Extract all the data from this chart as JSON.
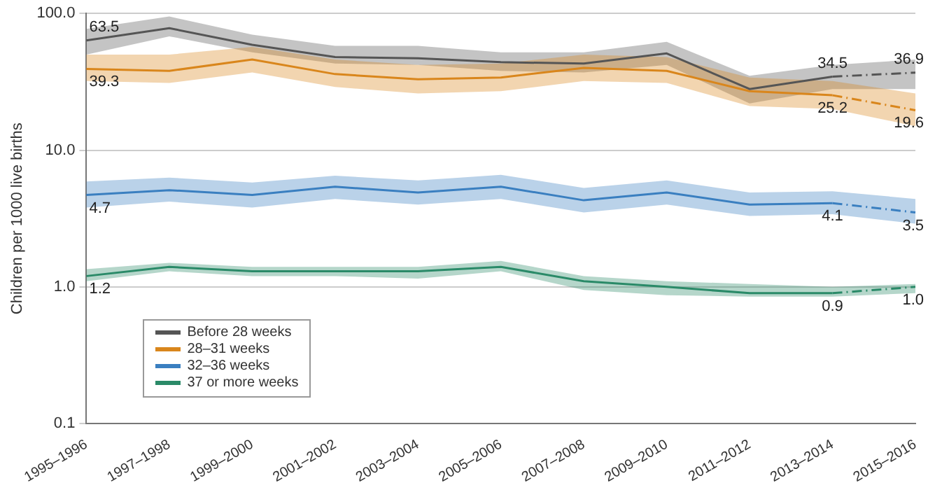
{
  "chart_data": {
    "type": "line",
    "ylabel": "Children per 1000 live births",
    "categories": [
      "1995–1996",
      "1997–1998",
      "1999–2000",
      "2001–2002",
      "2003–2004",
      "2005–2006",
      "2007–2008",
      "2009–2010",
      "2011–2012",
      "2013–2014",
      "2015–2016"
    ],
    "log": "y",
    "ylim": [
      0.1,
      100
    ],
    "yticks": [
      {
        "value": 0.1,
        "label": "0.1"
      },
      {
        "value": 1,
        "label": "1.0"
      },
      {
        "value": 10,
        "label": "10.0"
      },
      {
        "value": 100,
        "label": "100.0"
      }
    ],
    "grid": "y",
    "legend": "bottom left",
    "marker": "none",
    "line_style": "solid",
    "series": [
      {
        "name": "Before 28 weeks",
        "color": "#555555",
        "values": [
          63.5,
          78,
          59,
          48,
          47,
          44,
          43,
          51,
          28,
          34.5,
          null
        ],
        "lower": [
          50,
          68,
          52,
          43,
          42,
          38,
          37,
          42,
          22,
          28,
          28
        ],
        "upper": [
          77,
          95,
          70,
          58,
          58,
          52,
          52,
          62,
          35,
          42,
          46
        ],
        "value_labels": [
          "63.5",
          null,
          null,
          null,
          null,
          null,
          null,
          null,
          null,
          "34.5",
          null
        ]
      },
      {
        "name": "28–31 weeks",
        "color": "#d9861c",
        "values": [
          39.3,
          38,
          46,
          36,
          33,
          34,
          40,
          38,
          27,
          25.2,
          null
        ],
        "lower": [
          32,
          31,
          37,
          29,
          26,
          27,
          32,
          31,
          21,
          20,
          15
        ],
        "upper": [
          50,
          50,
          57,
          46,
          42,
          43,
          50,
          48,
          34,
          32,
          26
        ],
        "value_labels": [
          "39.3",
          null,
          null,
          null,
          null,
          null,
          null,
          null,
          null,
          "25.2",
          null
        ]
      },
      {
        "name": "32–36 weeks",
        "color": "#3a7fc0",
        "values": [
          4.7,
          5.1,
          4.7,
          5.4,
          4.9,
          5.4,
          4.3,
          4.9,
          4.0,
          4.1,
          null
        ],
        "lower": [
          3.8,
          4.2,
          3.8,
          4.4,
          4.0,
          4.4,
          3.5,
          4.0,
          3.3,
          3.4,
          2.9
        ],
        "upper": [
          5.9,
          6.3,
          5.8,
          6.5,
          6.0,
          6.6,
          5.3,
          6.0,
          4.9,
          5.0,
          4.4
        ],
        "value_labels": [
          "4.7",
          null,
          null,
          null,
          null,
          null,
          null,
          null,
          null,
          "4.1",
          null
        ]
      },
      {
        "name": "37 or more weeks",
        "color": "#2a8a68",
        "values": [
          1.2,
          1.4,
          1.3,
          1.3,
          1.3,
          1.4,
          1.1,
          1.0,
          0.9,
          0.9,
          null
        ],
        "lower": [
          1.1,
          1.3,
          1.2,
          1.2,
          1.15,
          1.3,
          0.95,
          0.87,
          0.85,
          0.85,
          0.9
        ],
        "upper": [
          1.35,
          1.5,
          1.4,
          1.4,
          1.4,
          1.55,
          1.2,
          1.1,
          1.05,
          1.0,
          1.05
        ],
        "value_labels": [
          "1.2",
          null,
          null,
          null,
          null,
          null,
          null,
          null,
          null,
          "0.9",
          null
        ]
      },
      {
        "color": "#555555",
        "line_style": "dashed",
        "values": [
          null,
          null,
          null,
          null,
          null,
          null,
          null,
          null,
          null,
          34.5,
          36.9
        ],
        "value_labels": [
          null,
          null,
          null,
          null,
          null,
          null,
          null,
          null,
          null,
          null,
          "36.9"
        ]
      },
      {
        "color": "#d9861c",
        "line_style": "dashed",
        "values": [
          null,
          null,
          null,
          null,
          null,
          null,
          null,
          null,
          null,
          25.2,
          19.6
        ],
        "value_labels": [
          null,
          null,
          null,
          null,
          null,
          null,
          null,
          null,
          null,
          null,
          "19.6"
        ]
      },
      {
        "color": "#3a7fc0",
        "line_style": "dashed",
        "values": [
          null,
          null,
          null,
          null,
          null,
          null,
          null,
          null,
          null,
          4.1,
          3.5
        ],
        "value_labels": [
          null,
          null,
          null,
          null,
          null,
          null,
          null,
          null,
          null,
          null,
          "3.5"
        ]
      },
      {
        "color": "#2a8a68",
        "line_style": "dashed",
        "values": [
          null,
          null,
          null,
          null,
          null,
          null,
          null,
          null,
          null,
          0.9,
          1.0
        ],
        "value_labels": [
          null,
          null,
          null,
          null,
          null,
          null,
          null,
          null,
          null,
          null,
          "1.0"
        ]
      }
    ]
  }
}
